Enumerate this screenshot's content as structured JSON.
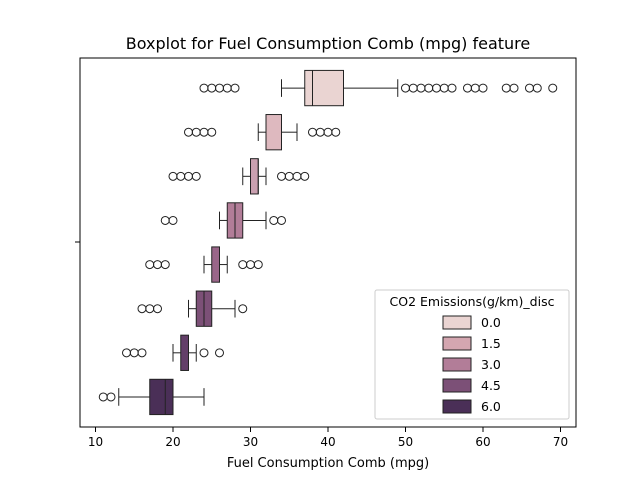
{
  "chart_data": {
    "type": "boxplot",
    "title": "Boxplot for Fuel Consumption Comb (mpg) feature",
    "xlabel": "Fuel Consumption Comb (mpg)",
    "ylabel": "",
    "xlim": [
      8,
      72
    ],
    "xticks": [
      10,
      20,
      30,
      40,
      50,
      60,
      70
    ],
    "orientation": "horizontal",
    "legend": {
      "title": "CO2 Emissions(g/km)_disc",
      "placement": "lower-right",
      "entries": [
        {
          "label": "0.0",
          "color": "#ead4d2"
        },
        {
          "label": "1.5",
          "color": "#d4a6b0"
        },
        {
          "label": "3.0",
          "color": "#b27d98"
        },
        {
          "label": "4.5",
          "color": "#7c5077"
        },
        {
          "label": "6.0",
          "color": "#4a2f57"
        }
      ]
    },
    "series": [
      {
        "color": "#ead4d2",
        "q1": 37,
        "median": 38,
        "q3": 42,
        "whisker_low": 34,
        "whisker_high": 49,
        "outliers": [
          24,
          25,
          26,
          27,
          28,
          50,
          51,
          52,
          53,
          54,
          55,
          56,
          58,
          59,
          60,
          63,
          64,
          66,
          67,
          69
        ]
      },
      {
        "color": "#deb9bf",
        "q1": 32,
        "median": 34,
        "q3": 34,
        "whisker_low": 31,
        "whisker_high": 36,
        "outliers": [
          22,
          23,
          24,
          25,
          38,
          39,
          40,
          41
        ]
      },
      {
        "color": "#caa0b0",
        "q1": 30,
        "median": 31,
        "q3": 31,
        "whisker_low": 29,
        "whisker_high": 32,
        "outliers": [
          20,
          21,
          22,
          23,
          34,
          35,
          36,
          37
        ]
      },
      {
        "color": "#b27d98",
        "q1": 27,
        "median": 28,
        "q3": 29,
        "whisker_low": 26,
        "whisker_high": 32,
        "outliers": [
          19,
          20,
          33,
          34
        ]
      },
      {
        "color": "#9a6689",
        "q1": 25,
        "median": 26,
        "q3": 26,
        "whisker_low": 24,
        "whisker_high": 27,
        "outliers": [
          17,
          18,
          19,
          29,
          30,
          31
        ]
      },
      {
        "color": "#7c5077",
        "q1": 23,
        "median": 24,
        "q3": 25,
        "whisker_low": 22,
        "whisker_high": 28,
        "outliers": [
          16,
          17,
          18,
          29
        ]
      },
      {
        "color": "#633f69",
        "q1": 21,
        "median": 22,
        "q3": 22,
        "whisker_low": 20,
        "whisker_high": 23,
        "outliers": [
          14,
          15,
          16,
          24,
          26
        ]
      },
      {
        "color": "#4a2f57",
        "q1": 17,
        "median": 19,
        "q3": 20,
        "whisker_low": 13,
        "whisker_high": 24,
        "outliers": [
          11,
          12
        ]
      }
    ]
  }
}
